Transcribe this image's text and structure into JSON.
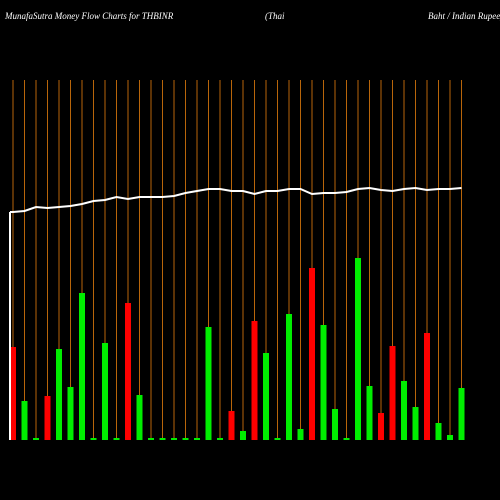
{
  "chart_data": {
    "type": "bar",
    "title": "MunafaSutra  Money Flow  Charts for THBINR",
    "subtitle": [
      "(Thai",
      "Baht / Indian  Rupee)"
    ],
    "ylim": [
      0,
      360
    ],
    "grid": true,
    "grid_color": "#b8650a",
    "line_color": "#ffffff",
    "values": [
      93,
      39,
      2,
      44,
      91,
      53,
      147,
      2,
      97,
      2,
      137,
      45,
      2,
      2,
      2,
      2,
      2,
      113,
      2,
      29,
      9,
      119,
      87,
      2,
      126,
      11,
      172,
      115,
      31,
      2,
      182,
      54,
      27,
      94,
      59,
      33,
      107,
      17,
      5,
      52
    ],
    "colors": [
      "#ff0000",
      "#00ee00",
      "#00ee00",
      "#ff0000",
      "#00ee00",
      "#00ee00",
      "#00ee00",
      "#00ee00",
      "#00ee00",
      "#00ee00",
      "#ff0000",
      "#00ee00",
      "#00ee00",
      "#00ee00",
      "#00ee00",
      "#00ee00",
      "#00ee00",
      "#00ee00",
      "#00ee00",
      "#ff0000",
      "#00ee00",
      "#ff0000",
      "#00ee00",
      "#00ee00",
      "#00ee00",
      "#00ee00",
      "#ff0000",
      "#00ee00",
      "#00ee00",
      "#00ee00",
      "#00ee00",
      "#00ee00",
      "#ff0000",
      "#ff0000",
      "#00ee00",
      "#00ee00",
      "#ff0000",
      "#00ee00",
      "#00ee00",
      "#00ee00"
    ],
    "line_values": [
      228,
      229,
      233,
      232,
      233,
      234,
      236,
      239,
      240,
      243,
      241,
      243,
      243,
      243,
      244,
      247,
      249,
      251,
      251,
      249,
      249,
      246,
      249,
      249,
      251,
      251,
      246,
      247,
      247,
      248,
      251,
      252,
      250,
      249,
      251,
      252,
      250,
      251,
      251,
      252
    ]
  }
}
